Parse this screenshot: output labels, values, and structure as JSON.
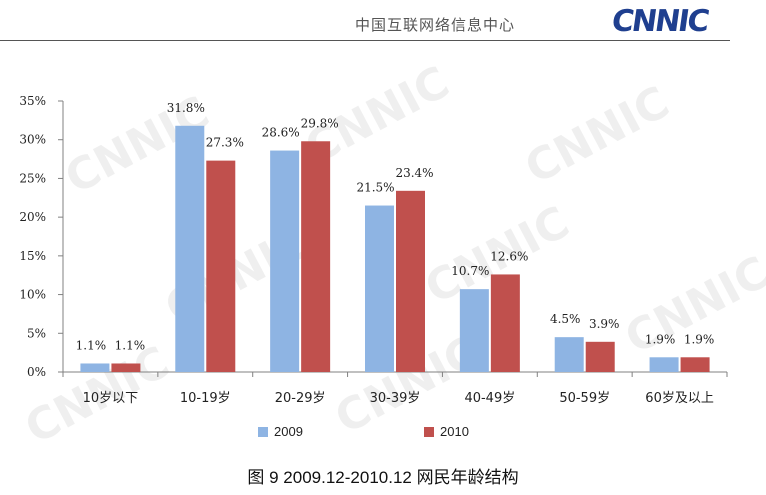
{
  "header": {
    "org_name": "中国互联网络信息中心",
    "logo": "CNNIC"
  },
  "caption": "图  9 2009.12-2010.12 网民年龄结构",
  "colors": {
    "2009": "#8eb4e3",
    "2010": "#c0504d"
  },
  "chart_data": {
    "type": "bar",
    "categories": [
      "10岁以下",
      "10-19岁",
      "20-29岁",
      "30-39岁",
      "40-49岁",
      "50-59岁",
      "60岁及以上"
    ],
    "series": [
      {
        "name": "2009",
        "values": [
          1.1,
          31.8,
          28.6,
          21.5,
          10.7,
          4.5,
          1.9
        ],
        "labels": [
          "1.1%",
          "31.8%",
          "28.6%",
          "21.5%",
          "10.7%",
          "4.5%",
          "1.9%"
        ]
      },
      {
        "name": "2010",
        "values": [
          1.1,
          27.3,
          29.8,
          23.4,
          12.6,
          3.9,
          1.9
        ],
        "labels": [
          "1.1%",
          "27.3%",
          "29.8%",
          "23.4%",
          "12.6%",
          "3.9%",
          "1.9%"
        ]
      }
    ],
    "ylim": [
      0,
      35
    ],
    "yticks": [
      0,
      5,
      10,
      15,
      20,
      25,
      30,
      35
    ],
    "ytick_labels": [
      "0%",
      "5%",
      "10%",
      "15%",
      "20%",
      "25%",
      "30%",
      "35%"
    ],
    "legend_position": "bottom",
    "grid": false
  }
}
